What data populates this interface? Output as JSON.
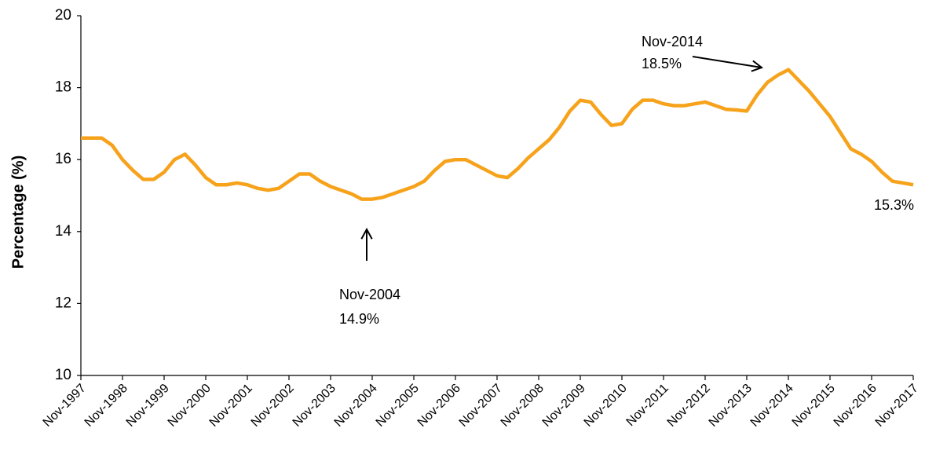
{
  "chart_data": {
    "type": "line",
    "y_label": "Percentage (%)",
    "categories": [
      "Nov-1997",
      null,
      null,
      null,
      "Nov-1998",
      null,
      null,
      null,
      "Nov-1999",
      null,
      null,
      null,
      "Nov-2000",
      null,
      null,
      null,
      "Nov-2001",
      null,
      null,
      null,
      "Nov-2002",
      null,
      null,
      null,
      "Nov-2003",
      null,
      null,
      null,
      "Nov-2004",
      null,
      null,
      null,
      "Nov-2005",
      null,
      null,
      null,
      "Nov-2006",
      null,
      null,
      null,
      "Nov-2007",
      null,
      null,
      null,
      "Nov-2008",
      null,
      null,
      null,
      "Nov-2009",
      null,
      null,
      null,
      "Nov-2010",
      null,
      null,
      null,
      "Nov-2011",
      null,
      null,
      null,
      "Nov-2012",
      null,
      null,
      null,
      "Nov-2013",
      null,
      null,
      null,
      "Nov-2014",
      null,
      null,
      null,
      "Nov-2015",
      null,
      null,
      null,
      "Nov-2016",
      null,
      null,
      null,
      "Nov-2017"
    ],
    "series": [
      {
        "color": "#f7a21b",
        "values": [
          16.6,
          16.6,
          16.6,
          16.4,
          16.0,
          15.7,
          15.45,
          15.45,
          15.65,
          16.0,
          16.15,
          15.85,
          15.5,
          15.3,
          15.3,
          15.35,
          15.3,
          15.2,
          15.15,
          15.2,
          15.4,
          15.6,
          15.6,
          15.4,
          15.25,
          15.15,
          15.05,
          14.9,
          14.9,
          14.95,
          15.05,
          15.15,
          15.25,
          15.4,
          15.7,
          15.95,
          16.0,
          16.0,
          15.85,
          15.7,
          15.55,
          15.5,
          15.75,
          16.05,
          16.3,
          16.55,
          16.9,
          17.35,
          17.65,
          17.6,
          17.25,
          16.95,
          17.0,
          17.4,
          17.65,
          17.65,
          17.55,
          17.5,
          17.5,
          17.55,
          17.6,
          17.5,
          17.4,
          17.38,
          17.35,
          17.8,
          18.15,
          18.35,
          18.5,
          18.2,
          17.9,
          17.55,
          17.2,
          16.75,
          16.3,
          16.15,
          15.95,
          15.65,
          15.4,
          15.35,
          15.3
        ]
      }
    ],
    "ylim": [
      10,
      20
    ],
    "yticks": [
      10,
      12,
      14,
      16,
      18,
      20
    ],
    "grid": false,
    "annotations": [
      [
        "Nov-2014",
        "18.5%"
      ],
      [
        "Nov-2004",
        "14.9%"
      ],
      [
        "15.3%"
      ]
    ]
  }
}
